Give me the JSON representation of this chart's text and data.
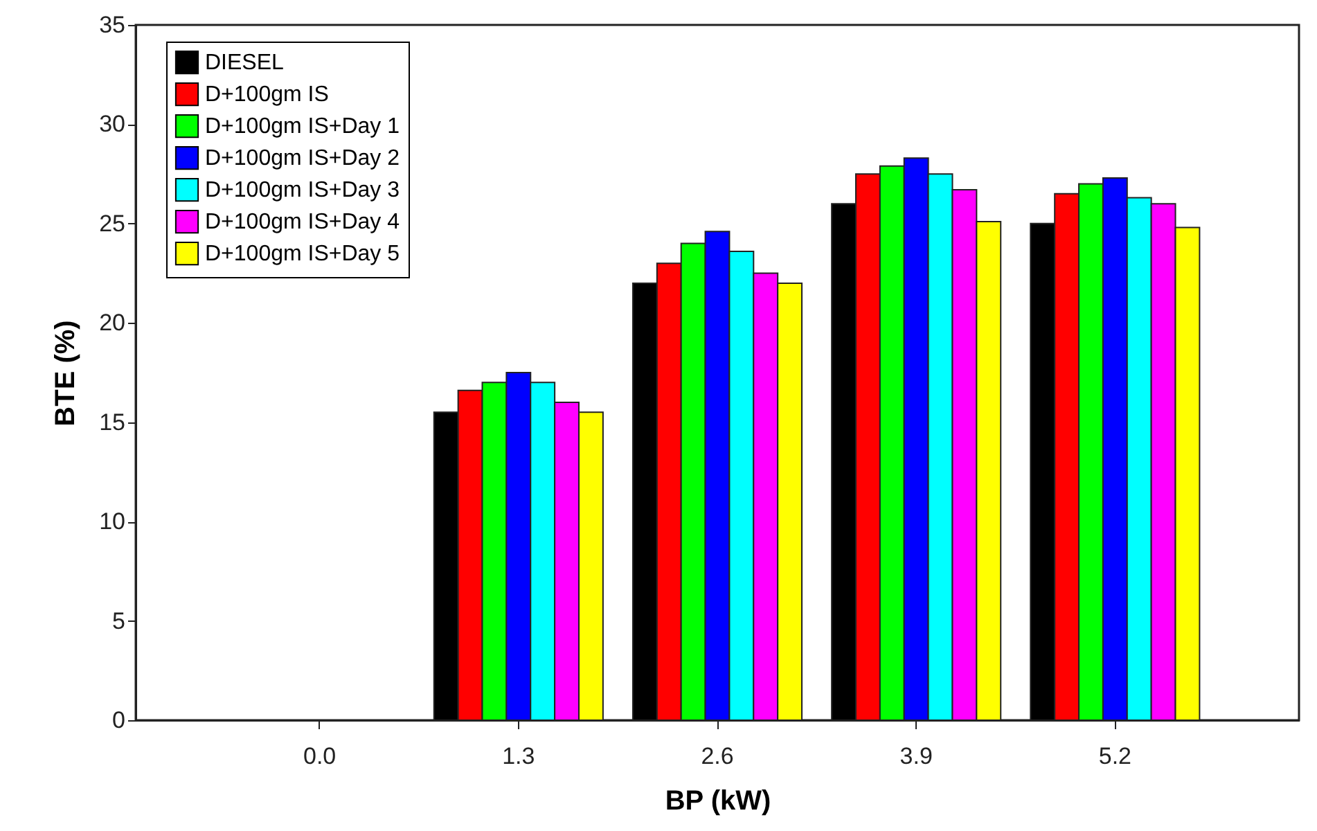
{
  "chart_data": {
    "type": "bar",
    "xlabel": "BP (kW)",
    "ylabel": "BTE (%)",
    "categories": [
      "0.0",
      "1.3",
      "2.6",
      "3.9",
      "5.2"
    ],
    "series": [
      {
        "name": "DIESEL",
        "color": "#000000",
        "values": [
          null,
          15.5,
          22.0,
          26.0,
          25.0
        ]
      },
      {
        "name": "D+100gm IS",
        "color": "#ff0000",
        "values": [
          null,
          16.6,
          23.0,
          27.5,
          26.5
        ]
      },
      {
        "name": "D+100gm IS+Day 1",
        "color": "#00ff00",
        "values": [
          null,
          17.0,
          24.0,
          27.9,
          27.0
        ]
      },
      {
        "name": "D+100gm IS+Day 2",
        "color": "#0000ff",
        "values": [
          null,
          17.5,
          24.6,
          28.3,
          27.3
        ]
      },
      {
        "name": "D+100gm IS+Day 3",
        "color": "#00ffff",
        "values": [
          null,
          17.0,
          23.6,
          27.5,
          26.3
        ]
      },
      {
        "name": "D+100gm IS+Day 4",
        "color": "#ff00ff",
        "values": [
          null,
          16.0,
          22.5,
          26.7,
          26.0
        ]
      },
      {
        "name": "D+100gm IS+Day 5",
        "color": "#ffff00",
        "values": [
          null,
          15.5,
          22.0,
          25.1,
          24.8
        ]
      }
    ],
    "ylim": [
      0,
      35
    ],
    "yticks": [
      0,
      5,
      10,
      15,
      20,
      25,
      30,
      35
    ],
    "grid": false,
    "legend": "top left"
  }
}
